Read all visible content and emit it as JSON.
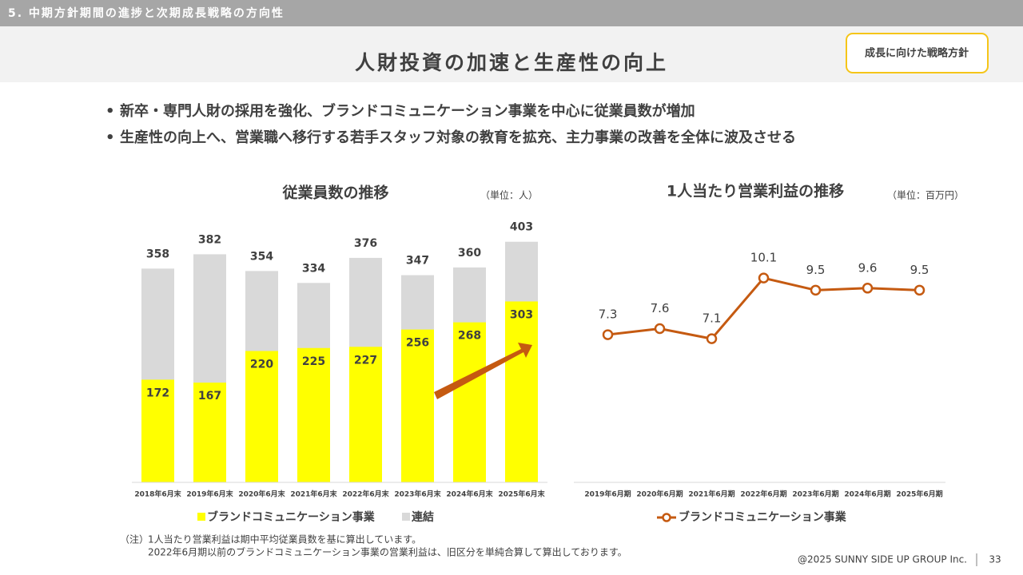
{
  "header": {
    "section": "5. 中期方針期間の進捗と次期成長戦略の方向性",
    "title": "人財投資の加速と生産性の向上",
    "badge": "成長に向けた戦略方針"
  },
  "bullets": [
    "新卒・専門人財の採用を強化、ブランドコミュニケーション事業を中心に従業員数が増加",
    "生産性の向上へ、営業職へ移行する若手スタッフ対象の教育を拡充、主力事業の改善を全体に波及させる"
  ],
  "chart_data": [
    {
      "type": "bar",
      "title": "従業員数の推移",
      "unit": "（単位：人）",
      "categories": [
        "2018年6月末",
        "2019年6月末",
        "2020年6月末",
        "2021年6月末",
        "2022年6月末",
        "2023年6月末",
        "2024年6月末",
        "2025年6月末"
      ],
      "series": [
        {
          "name": "ブランドコミュニケーション事業",
          "color": "#ffff00",
          "values": [
            172,
            167,
            220,
            225,
            227,
            256,
            268,
            303
          ]
        },
        {
          "name": "連結",
          "color": "#d9d9d9",
          "values": [
            358,
            382,
            354,
            334,
            376,
            347,
            360,
            403
          ]
        }
      ],
      "ylim": [
        0,
        420
      ]
    },
    {
      "type": "line",
      "title": "1人当たり営業利益の推移",
      "unit": "（単位：百万円）",
      "categories": [
        "2019年6月期",
        "2020年6月期",
        "2021年6月期",
        "2022年6月期",
        "2023年6月期",
        "2024年6月期",
        "2025年6月期"
      ],
      "series": [
        {
          "name": "ブランドコミュニケーション事業",
          "color": "#c55a11",
          "values": [
            7.3,
            7.6,
            7.1,
            10.1,
            9.5,
            9.6,
            9.5
          ]
        }
      ],
      "ylim": [
        0,
        12
      ]
    }
  ],
  "notes": [
    "（注）",
    "1人当たり営業利益は期中平均従業員数を基に算出しています。",
    "2022年6月期以前のブランドコミュニケーション事業の営業利益は、旧区分を単純合算して算出しております。"
  ],
  "footer": {
    "copyright": "@2025 SUNNY SIDE UP GROUP Inc.",
    "page": "33"
  }
}
